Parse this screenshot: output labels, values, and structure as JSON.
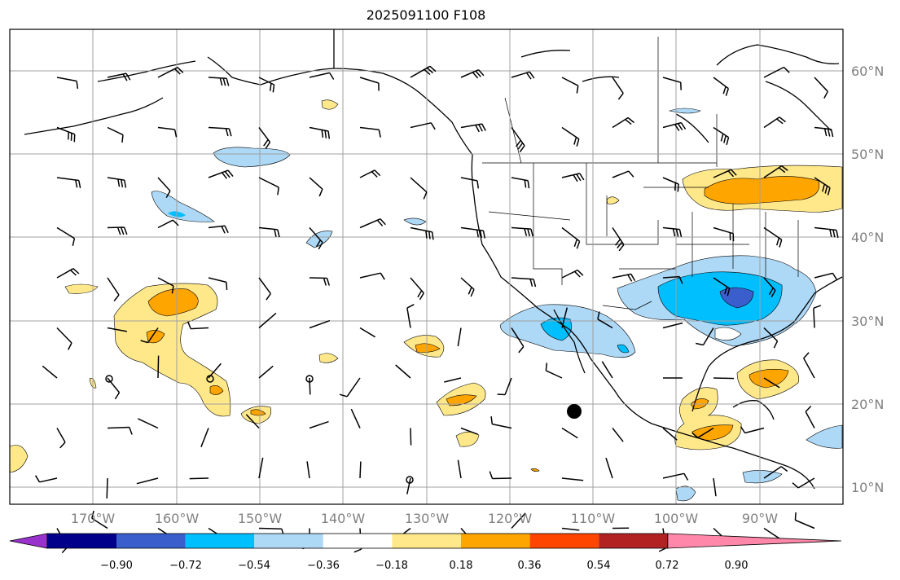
{
  "title": "2025091100 F108",
  "map": {
    "lon_range": [
      -180,
      -80
    ],
    "lat_range": [
      8,
      65
    ],
    "lat_ticks": [
      "60°N",
      "50°N",
      "40°N",
      "30°N",
      "20°N",
      "10°N"
    ],
    "lon_ticks": [
      "170°W",
      "160°W",
      "150°W",
      "140°W",
      "130°W",
      "120°W",
      "110°W",
      "100°W",
      "90°W"
    ],
    "colorbar": {
      "levels": [
        "−0.90",
        "−0.72",
        "−0.54",
        "−0.36",
        "−0.18",
        "0.18",
        "0.36",
        "0.54",
        "0.72",
        "0.90"
      ],
      "colors": [
        "#9932cc",
        "#00008b",
        "#3a5fcd",
        "#00bfff",
        "#add8f6",
        "#ffffff",
        "#ffe88a",
        "#ffa500",
        "#ff4500",
        "#b22222",
        "#ff88aa"
      ]
    },
    "symbols": [
      "storm-center-marker"
    ]
  }
}
